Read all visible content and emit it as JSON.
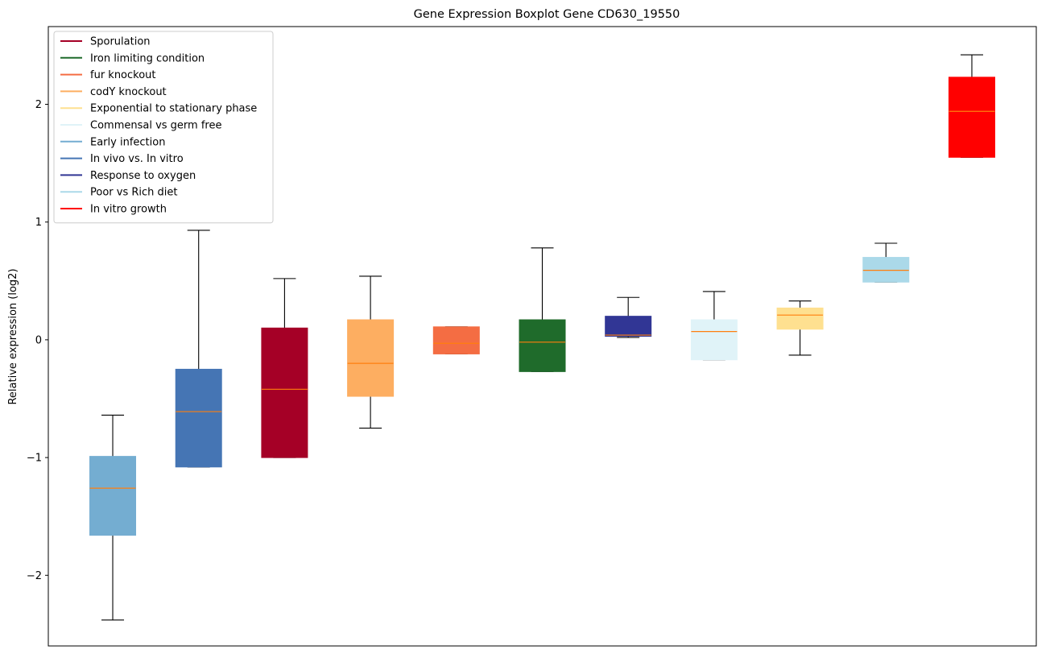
{
  "chart_data": {
    "type": "boxplot",
    "title": "Gene Expression Boxplot Gene CD630_19550",
    "xlabel": "",
    "ylabel": "Relative expression (log2)",
    "ylim": [
      -2.6,
      2.66
    ],
    "yticks": [
      -2,
      -1,
      0,
      1,
      2
    ],
    "ytick_labels": [
      "−2",
      "−1",
      "0",
      "1",
      "2"
    ],
    "median_color": "#ff7f0e",
    "legend_position": "upper-left",
    "legend": [
      {
        "label": "Sporulation",
        "color": "#a50026"
      },
      {
        "label": "Iron limiting condition",
        "color": "#1f6b2b"
      },
      {
        "label": "fur knockout",
        "color": "#f46d43"
      },
      {
        "label": "codY knockout",
        "color": "#fdae61"
      },
      {
        "label": "Exponential to stationary phase",
        "color": "#fee090"
      },
      {
        "label": "Commensal vs germ free",
        "color": "#e0f3f8"
      },
      {
        "label": "Early infection",
        "color": "#74add1"
      },
      {
        "label": "In vivo vs. In vitro",
        "color": "#4575b4"
      },
      {
        "label": "Response to oxygen",
        "color": "#313695"
      },
      {
        "label": "Poor vs Rich diet",
        "color": "#abd9e9"
      },
      {
        "label": "In vitro growth",
        "color": "#ff0000"
      }
    ],
    "boxes": [
      {
        "group": "Early infection",
        "color": "#74add1",
        "whisker_low": -2.38,
        "q1": -1.66,
        "median": -1.26,
        "q3": -0.99,
        "whisker_high": -0.64
      },
      {
        "group": "In vivo vs. In vitro",
        "color": "#4575b4",
        "whisker_low": -1.08,
        "q1": -1.08,
        "median": -0.61,
        "q3": -0.25,
        "whisker_high": 0.93
      },
      {
        "group": "Sporulation",
        "color": "#a50026",
        "whisker_low": -1.0,
        "q1": -1.0,
        "median": -0.42,
        "q3": 0.1,
        "whisker_high": 0.52
      },
      {
        "group": "codY knockout",
        "color": "#fdae61",
        "whisker_low": -0.75,
        "q1": -0.48,
        "median": -0.2,
        "q3": 0.17,
        "whisker_high": 0.54
      },
      {
        "group": "fur knockout",
        "color": "#f46d43",
        "whisker_low": -0.12,
        "q1": -0.12,
        "median": -0.03,
        "q3": 0.11,
        "whisker_high": 0.11
      },
      {
        "group": "Iron limiting condition",
        "color": "#1f6b2b",
        "whisker_low": -0.27,
        "q1": -0.27,
        "median": -0.02,
        "q3": 0.17,
        "whisker_high": 0.78
      },
      {
        "group": "Response to oxygen",
        "color": "#313695",
        "whisker_low": 0.02,
        "q1": 0.03,
        "median": 0.04,
        "q3": 0.2,
        "whisker_high": 0.36
      },
      {
        "group": "Commensal vs germ free",
        "color": "#e0f3f8",
        "whisker_low": -0.17,
        "q1": -0.17,
        "median": 0.07,
        "q3": 0.17,
        "whisker_high": 0.41
      },
      {
        "group": "Exponential to stationary phase",
        "color": "#fee090",
        "whisker_low": -0.13,
        "q1": 0.09,
        "median": 0.21,
        "q3": 0.27,
        "whisker_high": 0.33
      },
      {
        "group": "Poor vs Rich diet",
        "color": "#abd9e9",
        "whisker_low": 0.49,
        "q1": 0.49,
        "median": 0.59,
        "q3": 0.7,
        "whisker_high": 0.82
      },
      {
        "group": "In vitro growth",
        "color": "#ff0000",
        "whisker_low": 1.55,
        "q1": 1.55,
        "median": 1.94,
        "q3": 2.23,
        "whisker_high": 2.42
      }
    ]
  }
}
